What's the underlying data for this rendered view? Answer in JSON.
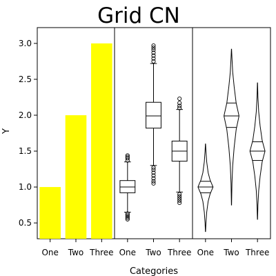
{
  "chart_data": {
    "type": "grid",
    "title": "Grid CN",
    "xlabel": "Categories",
    "ylabel": "Y",
    "ylim": [
      0.28,
      3.22
    ],
    "yticks": [
      "0.5",
      "1.0",
      "1.5",
      "2.0",
      "2.5",
      "3.0"
    ],
    "categories": [
      "One",
      "Two",
      "Three"
    ],
    "colors": {
      "bar_fill": "#ffff00",
      "stroke": "#000000",
      "box_fill": "#ffffff"
    },
    "panels": [
      {
        "type": "bar",
        "values": [
          1.0,
          2.0,
          3.0
        ]
      },
      {
        "type": "boxplot",
        "boxes": [
          {
            "q1": 0.92,
            "median": 1.0,
            "q3": 1.09,
            "whisker_low": 0.65,
            "whisker_high": 1.35,
            "outliers": [
              0.55,
              0.57,
              0.59,
              0.61,
              0.63,
              1.37,
              1.4,
              1.42,
              1.44
            ]
          },
          {
            "q1": 1.82,
            "median": 1.99,
            "q3": 2.18,
            "whisker_low": 1.3,
            "whisker_high": 2.72,
            "outliers": [
              1.05,
              1.08,
              1.12,
              1.16,
              1.2,
              1.24,
              1.27,
              2.75,
              2.79,
              2.83,
              2.87,
              2.91,
              2.94,
              2.97
            ]
          },
          {
            "q1": 1.36,
            "median": 1.5,
            "q3": 1.64,
            "whisker_low": 0.93,
            "whisker_high": 2.08,
            "outliers": [
              0.78,
              0.81,
              0.84,
              0.87,
              0.9,
              2.1,
              2.13,
              2.17,
              2.23
            ]
          }
        ]
      },
      {
        "type": "violin",
        "violins": [
          {
            "min": 0.38,
            "max": 1.6,
            "center": 1.0,
            "q1": 0.92,
            "q3": 1.08,
            "profile": [
              [
                0.38,
                0.01
              ],
              [
                0.5,
                0.06
              ],
              [
                0.65,
                0.16
              ],
              [
                0.8,
                0.35
              ],
              [
                0.9,
                0.6
              ],
              [
                1.0,
                1.0
              ],
              [
                1.1,
                0.6
              ],
              [
                1.2,
                0.35
              ],
              [
                1.35,
                0.16
              ],
              [
                1.5,
                0.06
              ],
              [
                1.6,
                0.01
              ]
            ]
          },
          {
            "min": 0.75,
            "max": 2.92,
            "center": 1.99,
            "q1": 1.83,
            "q3": 2.17,
            "profile": [
              [
                0.75,
                0.01
              ],
              [
                1.05,
                0.06
              ],
              [
                1.3,
                0.16
              ],
              [
                1.55,
                0.35
              ],
              [
                1.8,
                0.62
              ],
              [
                1.99,
                1.0
              ],
              [
                2.17,
                0.62
              ],
              [
                2.4,
                0.35
              ],
              [
                2.6,
                0.16
              ],
              [
                2.8,
                0.06
              ],
              [
                2.92,
                0.01
              ]
            ]
          },
          {
            "min": 0.55,
            "max": 2.45,
            "center": 1.5,
            "q1": 1.37,
            "q3": 1.63,
            "profile": [
              [
                0.55,
                0.01
              ],
              [
                0.75,
                0.06
              ],
              [
                0.95,
                0.16
              ],
              [
                1.15,
                0.35
              ],
              [
                1.35,
                0.62
              ],
              [
                1.5,
                1.0
              ],
              [
                1.65,
                0.62
              ],
              [
                1.85,
                0.35
              ],
              [
                2.05,
                0.16
              ],
              [
                2.25,
                0.06
              ],
              [
                2.45,
                0.01
              ]
            ]
          }
        ]
      }
    ]
  }
}
